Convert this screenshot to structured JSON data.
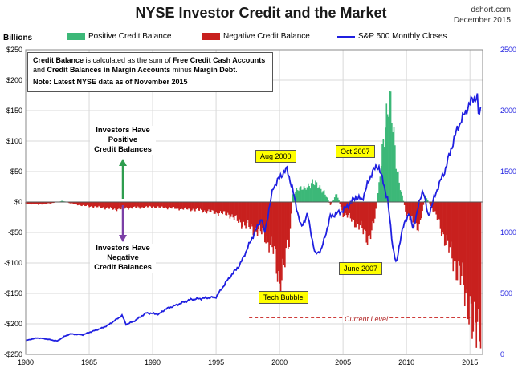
{
  "header": {
    "title": "NYSE Investor Credit and the Market",
    "source_site": "dshort.com",
    "source_date": "December 2015"
  },
  "legend": {
    "positive": "Positive Credit Balance",
    "negative": "Negative Credit Balance",
    "sp500": "S&P 500 Monthly Closes"
  },
  "info_box": {
    "line1_a": "Credit Balance",
    "line1_b": " is calculated as the sum of ",
    "line1_c": "Free Credit Cash Accounts",
    "line2_a": "and ",
    "line2_b": "Credit Balances in Margin Accounts",
    "line2_c": " minus ",
    "line2_d": "Margin Debt",
    "line2_e": ".",
    "note": "Note: Latest NYSE data as of November 2015"
  },
  "annotations": {
    "positive_line1": "Investors Have",
    "positive_line2": "Positive",
    "positive_line3": "Credit Balances",
    "negative_line1": "Investors Have",
    "negative_line2": "Negative",
    "negative_line3": "Credit Balances",
    "aug2000": "Aug 2000",
    "oct2007": "Oct 2007",
    "june2007": "June 2007",
    "tech_bubble": "Tech Bubble",
    "current_level": "Current Level"
  },
  "colors": {
    "positive": "#3cb878",
    "negative": "#c8201e",
    "sp500": "#1f1fe0",
    "arrow_green": "#2e9d4e",
    "arrow_purple": "#7b3fa6",
    "grid": "#d9d9d9"
  },
  "chart_data": {
    "type": "bar+line",
    "title": "NYSE Investor Credit and the Market",
    "ylabel_left": "Billions",
    "x_range": [
      1980,
      2016
    ],
    "x_ticks": [
      1980,
      1985,
      1990,
      1995,
      2000,
      2005,
      2010,
      2015
    ],
    "x_tick_labels": [
      "1980",
      "1985",
      "1990",
      "1995",
      "2000",
      "2005",
      "2010",
      "2015"
    ],
    "left_axis": {
      "range": [
        -250,
        250
      ],
      "ticks": [
        250,
        200,
        150,
        100,
        50,
        0,
        -50,
        -100,
        -150,
        -200,
        -250
      ],
      "tick_labels": [
        "$250",
        "$200",
        "$150",
        "$100",
        "$50",
        "$0",
        "-$50",
        "-$100",
        "-$150",
        "-$200",
        "-$250"
      ]
    },
    "right_axis": {
      "range": [
        0,
        2500
      ],
      "ticks": [
        0,
        500,
        1000,
        1500,
        2000,
        2500
      ],
      "tick_labels": [
        "0",
        "500",
        "1000",
        "1500",
        "2000",
        "2500"
      ]
    },
    "credit_balance": {
      "name": "Credit Balance (billions)",
      "points": [
        [
          1980.0,
          -3
        ],
        [
          1981.0,
          -4
        ],
        [
          1982.0,
          -2
        ],
        [
          1982.9,
          2
        ],
        [
          1983.5,
          -2
        ],
        [
          1984.5,
          -6
        ],
        [
          1986.0,
          -9
        ],
        [
          1987.0,
          -12
        ],
        [
          1988.0,
          -10
        ],
        [
          1990.0,
          -8
        ],
        [
          1991.5,
          -10
        ],
        [
          1993.0,
          -12
        ],
        [
          1994.5,
          -16
        ],
        [
          1996.0,
          -20
        ],
        [
          1997.0,
          -35
        ],
        [
          1998.0,
          -45
        ],
        [
          1998.6,
          -50
        ],
        [
          1999.0,
          -60
        ],
        [
          1999.5,
          -80
        ],
        [
          2000.0,
          -130
        ],
        [
          2000.3,
          -110
        ],
        [
          2000.8,
          -60
        ],
        [
          2001.0,
          10
        ],
        [
          2001.5,
          25
        ],
        [
          2002.0,
          20
        ],
        [
          2002.6,
          35
        ],
        [
          2003.0,
          25
        ],
        [
          2003.5,
          18
        ],
        [
          2004.0,
          -5
        ],
        [
          2004.5,
          15
        ],
        [
          2005.0,
          -20
        ],
        [
          2005.5,
          -25
        ],
        [
          2006.0,
          -35
        ],
        [
          2006.5,
          -45
        ],
        [
          2007.0,
          -60
        ],
        [
          2007.4,
          -40
        ],
        [
          2007.8,
          20
        ],
        [
          2008.0,
          60
        ],
        [
          2008.3,
          130
        ],
        [
          2008.6,
          180
        ],
        [
          2008.9,
          120
        ],
        [
          2009.2,
          60
        ],
        [
          2009.6,
          15
        ],
        [
          2010.0,
          -20
        ],
        [
          2010.5,
          -35
        ],
        [
          2011.0,
          -40
        ],
        [
          2011.5,
          10
        ],
        [
          2012.0,
          -10
        ],
        [
          2012.5,
          -30
        ],
        [
          2013.0,
          -60
        ],
        [
          2013.5,
          -85
        ],
        [
          2014.0,
          -110
        ],
        [
          2014.5,
          -140
        ],
        [
          2015.0,
          -170
        ],
        [
          2015.3,
          -230
        ],
        [
          2015.6,
          -200
        ],
        [
          2015.9,
          -190
        ]
      ]
    },
    "sp500": {
      "name": "S&P 500 Monthly Closes",
      "points": [
        [
          1980.0,
          114
        ],
        [
          1980.9,
          135
        ],
        [
          1981.5,
          128
        ],
        [
          1982.5,
          110
        ],
        [
          1983.0,
          145
        ],
        [
          1983.5,
          167
        ],
        [
          1984.5,
          160
        ],
        [
          1985.0,
          180
        ],
        [
          1985.9,
          211
        ],
        [
          1986.5,
          240
        ],
        [
          1987.6,
          320
        ],
        [
          1987.9,
          245
        ],
        [
          1988.5,
          270
        ],
        [
          1989.5,
          340
        ],
        [
          1990.5,
          330
        ],
        [
          1991.0,
          370
        ],
        [
          1992.0,
          410
        ],
        [
          1993.0,
          450
        ],
        [
          1994.0,
          460
        ],
        [
          1995.0,
          470
        ],
        [
          1995.9,
          610
        ],
        [
          1996.9,
          740
        ],
        [
          1997.9,
          970
        ],
        [
          1998.6,
          1120
        ],
        [
          1998.8,
          985
        ],
        [
          1999.5,
          1370
        ],
        [
          2000.2,
          1480
        ],
        [
          2000.6,
          1520
        ],
        [
          2001.0,
          1360
        ],
        [
          2001.7,
          1040
        ],
        [
          2002.2,
          1150
        ],
        [
          2002.8,
          820
        ],
        [
          2003.3,
          860
        ],
        [
          2004.0,
          1130
        ],
        [
          2005.0,
          1180
        ],
        [
          2006.0,
          1290
        ],
        [
          2006.5,
          1270
        ],
        [
          2007.3,
          1500
        ],
        [
          2007.8,
          1550
        ],
        [
          2008.5,
          1280
        ],
        [
          2008.9,
          900
        ],
        [
          2009.2,
          735
        ],
        [
          2009.6,
          1000
        ],
        [
          2010.2,
          1170
        ],
        [
          2010.5,
          1030
        ],
        [
          2011.3,
          1360
        ],
        [
          2011.7,
          1130
        ],
        [
          2012.5,
          1380
        ],
        [
          2013.0,
          1500
        ],
        [
          2013.5,
          1680
        ],
        [
          2014.0,
          1850
        ],
        [
          2014.7,
          2000
        ],
        [
          2015.2,
          2100
        ],
        [
          2015.6,
          2100
        ],
        [
          2015.7,
          1920
        ],
        [
          2015.9,
          2080
        ]
      ]
    },
    "current_level_value": -190
  }
}
